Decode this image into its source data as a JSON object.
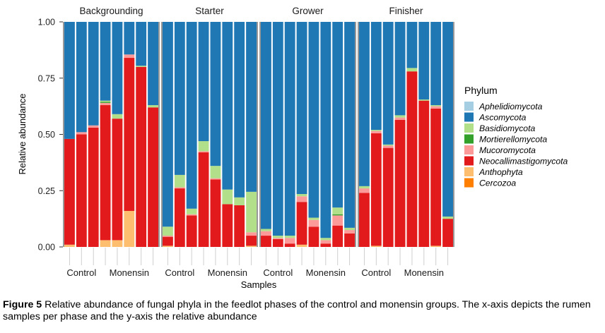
{
  "chart_data": {
    "type": "bar",
    "stacked": true,
    "facets": [
      "Backgrounding",
      "Starter",
      "Grower",
      "Finisher"
    ],
    "x_group_labels": [
      "Control",
      "Monensin"
    ],
    "xlabel": "Samples",
    "ylabel": "Relative abundance",
    "ylim": [
      0,
      1
    ],
    "y_ticks": [
      "0.00",
      "0.25",
      "0.50",
      "0.75",
      "1.00"
    ],
    "legend_title": "Phylum",
    "legend_position": "right",
    "series": [
      {
        "name": "Aphelidiomycota",
        "color": "#a6cee3"
      },
      {
        "name": "Ascomycota",
        "color": "#1f78b4"
      },
      {
        "name": "Basidiomycota",
        "color": "#b2df8a"
      },
      {
        "name": "Mortierellomycota",
        "color": "#33a02c"
      },
      {
        "name": "Mucoromycota",
        "color": "#fb9a99"
      },
      {
        "name": "Neocallimastigomycota",
        "color": "#e31a1c"
      },
      {
        "name": "Anthophyta",
        "color": "#fdbf6f"
      },
      {
        "name": "Cercozoa",
        "color": "#ff7f00"
      }
    ],
    "samples": [
      [
        {
          "group": "Control",
          "values": {
            "Cercozoa": 0,
            "Anthophyta": 0.01,
            "Neocallimastigomycota": 0.47,
            "Mucoromycota": 0,
            "Mortierellomycota": 0,
            "Basidiomycota": 0,
            "Ascomycota": 0.52,
            "Aphelidiomycota": 0
          }
        },
        {
          "group": "Control",
          "values": {
            "Cercozoa": 0,
            "Anthophyta": 0,
            "Neocallimastigomycota": 0.5,
            "Mucoromycota": 0.01,
            "Mortierellomycota": 0,
            "Basidiomycota": 0,
            "Ascomycota": 0.49,
            "Aphelidiomycota": 0
          }
        },
        {
          "group": "Control",
          "values": {
            "Cercozoa": 0,
            "Anthophyta": 0,
            "Neocallimastigomycota": 0.53,
            "Mucoromycota": 0.01,
            "Mortierellomycota": 0,
            "Basidiomycota": 0,
            "Ascomycota": 0.46,
            "Aphelidiomycota": 0
          }
        },
        {
          "group": "Control",
          "values": {
            "Cercozoa": 0,
            "Anthophyta": 0.03,
            "Neocallimastigomycota": 0.6,
            "Mucoromycota": 0.01,
            "Mortierellomycota": 0.005,
            "Basidiomycota": 0.005,
            "Ascomycota": 0.35,
            "Aphelidiomycota": 0
          }
        },
        {
          "group": "Monensin",
          "values": {
            "Cercozoa": 0,
            "Anthophyta": 0.03,
            "Neocallimastigomycota": 0.54,
            "Mucoromycota": 0,
            "Mortierellomycota": 0,
            "Basidiomycota": 0.02,
            "Ascomycota": 0.41,
            "Aphelidiomycota": 0
          }
        },
        {
          "group": "Monensin",
          "values": {
            "Cercozoa": 0,
            "Anthophyta": 0.16,
            "Neocallimastigomycota": 0.68,
            "Mucoromycota": 0.015,
            "Mortierellomycota": 0,
            "Basidiomycota": 0,
            "Ascomycota": 0.145,
            "Aphelidiomycota": 0
          }
        },
        {
          "group": "Monensin",
          "values": {
            "Cercozoa": 0,
            "Anthophyta": 0,
            "Neocallimastigomycota": 0.8,
            "Mucoromycota": 0,
            "Mortierellomycota": 0,
            "Basidiomycota": 0.005,
            "Ascomycota": 0.195,
            "Aphelidiomycota": 0
          }
        },
        {
          "group": "Monensin",
          "values": {
            "Cercozoa": 0,
            "Anthophyta": 0,
            "Neocallimastigomycota": 0.62,
            "Mucoromycota": 0,
            "Mortierellomycota": 0,
            "Basidiomycota": 0.01,
            "Ascomycota": 0.37,
            "Aphelidiomycota": 0
          }
        }
      ],
      [
        {
          "group": "Control",
          "values": {
            "Cercozoa": 0,
            "Anthophyta": 0.005,
            "Neocallimastigomycota": 0.04,
            "Mucoromycota": 0.005,
            "Mortierellomycota": 0,
            "Basidiomycota": 0.04,
            "Ascomycota": 0.91,
            "Aphelidiomycota": 0
          }
        },
        {
          "group": "Control",
          "values": {
            "Cercozoa": 0,
            "Anthophyta": 0,
            "Neocallimastigomycota": 0.26,
            "Mucoromycota": 0.005,
            "Mortierellomycota": 0,
            "Basidiomycota": 0.055,
            "Ascomycota": 0.68,
            "Aphelidiomycota": 0
          }
        },
        {
          "group": "Control",
          "values": {
            "Cercozoa": 0,
            "Anthophyta": 0,
            "Neocallimastigomycota": 0.14,
            "Mucoromycota": 0.005,
            "Mortierellomycota": 0,
            "Basidiomycota": 0.025,
            "Ascomycota": 0.83,
            "Aphelidiomycota": 0
          }
        },
        {
          "group": "Control",
          "values": {
            "Cercozoa": 0,
            "Anthophyta": 0,
            "Neocallimastigomycota": 0.42,
            "Mucoromycota": 0.005,
            "Mortierellomycota": 0,
            "Basidiomycota": 0.045,
            "Ascomycota": 0.53,
            "Aphelidiomycota": 0
          }
        },
        {
          "group": "Monensin",
          "values": {
            "Cercozoa": 0,
            "Anthophyta": 0,
            "Neocallimastigomycota": 0.3,
            "Mucoromycota": 0.005,
            "Mortierellomycota": 0,
            "Basidiomycota": 0.055,
            "Ascomycota": 0.64,
            "Aphelidiomycota": 0
          }
        },
        {
          "group": "Monensin",
          "values": {
            "Cercozoa": 0,
            "Anthophyta": 0,
            "Neocallimastigomycota": 0.19,
            "Mucoromycota": 0,
            "Mortierellomycota": 0,
            "Basidiomycota": 0.065,
            "Ascomycota": 0.745,
            "Aphelidiomycota": 0
          }
        },
        {
          "group": "Monensin",
          "values": {
            "Cercozoa": 0,
            "Anthophyta": 0,
            "Neocallimastigomycota": 0.185,
            "Mucoromycota": 0,
            "Mortierellomycota": 0,
            "Basidiomycota": 0.035,
            "Ascomycota": 0.78,
            "Aphelidiomycota": 0
          }
        },
        {
          "group": "Monensin",
          "values": {
            "Cercozoa": 0,
            "Anthophyta": 0.005,
            "Neocallimastigomycota": 0.045,
            "Mucoromycota": 0.015,
            "Mortierellomycota": 0,
            "Basidiomycota": 0.18,
            "Ascomycota": 0.755,
            "Aphelidiomycota": 0
          }
        }
      ],
      [
        {
          "group": "Control",
          "values": {
            "Cercozoa": 0,
            "Anthophyta": 0,
            "Neocallimastigomycota": 0.05,
            "Mucoromycota": 0.02,
            "Mortierellomycota": 0,
            "Basidiomycota": 0.01,
            "Ascomycota": 0.92,
            "Aphelidiomycota": 0
          }
        },
        {
          "group": "Control",
          "values": {
            "Cercozoa": 0,
            "Anthophyta": 0,
            "Neocallimastigomycota": 0.035,
            "Mucoromycota": 0.005,
            "Mortierellomycota": 0,
            "Basidiomycota": 0.01,
            "Ascomycota": 0.95,
            "Aphelidiomycota": 0
          }
        },
        {
          "group": "Control",
          "values": {
            "Cercozoa": 0,
            "Anthophyta": 0,
            "Neocallimastigomycota": 0.015,
            "Mucoromycota": 0.025,
            "Mortierellomycota": 0,
            "Basidiomycota": 0.01,
            "Ascomycota": 0.95,
            "Aphelidiomycota": 0
          }
        },
        {
          "group": "Control",
          "values": {
            "Cercozoa": 0,
            "Anthophyta": 0.01,
            "Neocallimastigomycota": 0.19,
            "Mucoromycota": 0.025,
            "Mortierellomycota": 0,
            "Basidiomycota": 0.01,
            "Ascomycota": 0.765,
            "Aphelidiomycota": 0
          }
        },
        {
          "group": "Monensin",
          "values": {
            "Cercozoa": 0,
            "Anthophyta": 0,
            "Neocallimastigomycota": 0.09,
            "Mucoromycota": 0.03,
            "Mortierellomycota": 0,
            "Basidiomycota": 0.01,
            "Ascomycota": 0.87,
            "Aphelidiomycota": 0
          }
        },
        {
          "group": "Monensin",
          "values": {
            "Cercozoa": 0,
            "Anthophyta": 0,
            "Neocallimastigomycota": 0.015,
            "Mucoromycota": 0.015,
            "Mortierellomycota": 0,
            "Basidiomycota": 0.01,
            "Ascomycota": 0.96,
            "Aphelidiomycota": 0
          }
        },
        {
          "group": "Monensin",
          "values": {
            "Cercozoa": 0,
            "Anthophyta": 0,
            "Neocallimastigomycota": 0.095,
            "Mucoromycota": 0.045,
            "Mortierellomycota": 0.005,
            "Basidiomycota": 0.03,
            "Ascomycota": 0.825,
            "Aphelidiomycota": 0
          }
        },
        {
          "group": "Monensin",
          "values": {
            "Cercozoa": 0,
            "Anthophyta": 0,
            "Neocallimastigomycota": 0.06,
            "Mucoromycota": 0.015,
            "Mortierellomycota": 0,
            "Basidiomycota": 0.01,
            "Ascomycota": 0.915,
            "Aphelidiomycota": 0
          }
        }
      ],
      [
        {
          "group": "Control",
          "values": {
            "Cercozoa": 0,
            "Anthophyta": 0,
            "Neocallimastigomycota": 0.24,
            "Mucoromycota": 0.02,
            "Mortierellomycota": 0,
            "Basidiomycota": 0.01,
            "Ascomycota": 0.73,
            "Aphelidiomycota": 0
          }
        },
        {
          "group": "Control",
          "values": {
            "Cercozoa": 0,
            "Anthophyta": 0.005,
            "Neocallimastigomycota": 0.5,
            "Mucoromycota": 0.01,
            "Mortierellomycota": 0,
            "Basidiomycota": 0.005,
            "Ascomycota": 0.48,
            "Aphelidiomycota": 0
          }
        },
        {
          "group": "Control",
          "values": {
            "Cercozoa": 0,
            "Anthophyta": 0,
            "Neocallimastigomycota": 0.44,
            "Mucoromycota": 0.01,
            "Mortierellomycota": 0,
            "Basidiomycota": 0.005,
            "Ascomycota": 0.545,
            "Aphelidiomycota": 0
          }
        },
        {
          "group": "Control",
          "values": {
            "Cercozoa": 0,
            "Anthophyta": 0,
            "Neocallimastigomycota": 0.565,
            "Mucoromycota": 0.01,
            "Mortierellomycota": 0,
            "Basidiomycota": 0.01,
            "Ascomycota": 0.415,
            "Aphelidiomycota": 0
          }
        },
        {
          "group": "Monensin",
          "values": {
            "Cercozoa": 0,
            "Anthophyta": 0,
            "Neocallimastigomycota": 0.78,
            "Mucoromycota": 0,
            "Mortierellomycota": 0,
            "Basidiomycota": 0.015,
            "Ascomycota": 0.205,
            "Aphelidiomycota": 0
          }
        },
        {
          "group": "Monensin",
          "values": {
            "Cercozoa": 0,
            "Anthophyta": 0,
            "Neocallimastigomycota": 0.65,
            "Mucoromycota": 0,
            "Mortierellomycota": 0,
            "Basidiomycota": 0.005,
            "Ascomycota": 0.345,
            "Aphelidiomycota": 0
          }
        },
        {
          "group": "Monensin",
          "values": {
            "Cercozoa": 0,
            "Anthophyta": 0.005,
            "Neocallimastigomycota": 0.61,
            "Mucoromycota": 0.01,
            "Mortierellomycota": 0,
            "Basidiomycota": 0.005,
            "Ascomycota": 0.37,
            "Aphelidiomycota": 0
          }
        },
        {
          "group": "Monensin",
          "values": {
            "Cercozoa": 0,
            "Anthophyta": 0,
            "Neocallimastigomycota": 0.125,
            "Mucoromycota": 0,
            "Mortierellomycota": 0,
            "Basidiomycota": 0.01,
            "Ascomycota": 0.865,
            "Aphelidiomycota": 0
          }
        }
      ]
    ]
  },
  "caption": {
    "label": "Figure 5",
    "text": " Relative abundance of fungal phyla in the feedlot phases of the control and monensin groups. The x-axis depicts the rumen samples per phase and the y-axis the relative abundance"
  }
}
